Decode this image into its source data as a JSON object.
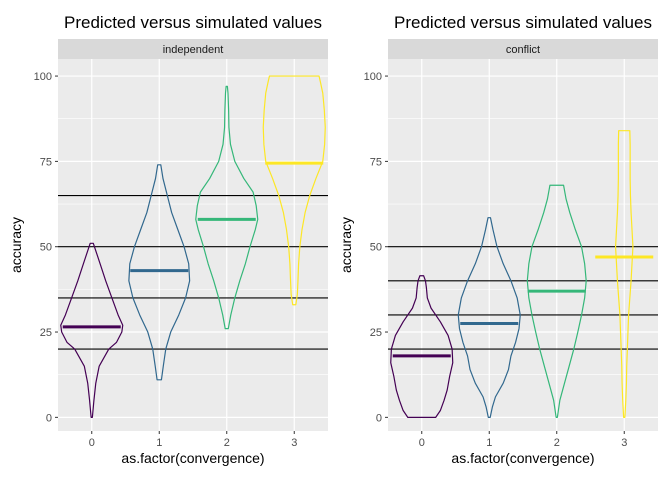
{
  "chart_data": [
    {
      "type": "violin",
      "title": "Predicted versus simulated values",
      "facet_label": "independent",
      "xlabel": "as.factor(convergence)",
      "ylabel": "accuracy",
      "categories": [
        "0",
        "1",
        "2",
        "3"
      ],
      "ylim": [
        -4,
        105
      ],
      "yticks": [
        0,
        25,
        50,
        75,
        100
      ],
      "hlines": [
        20,
        35,
        50,
        65
      ],
      "series": [
        {
          "category": "0",
          "color": "#440154",
          "predicted": 26.5,
          "range": [
            0,
            51
          ],
          "violin": [
            [
              0,
              0.02
            ],
            [
              5,
              0.07
            ],
            [
              10,
              0.13
            ],
            [
              15,
              0.24
            ],
            [
              20,
              0.55
            ],
            [
              22,
              0.8
            ],
            [
              25,
              0.97
            ],
            [
              27,
              1.0
            ],
            [
              30,
              0.85
            ],
            [
              35,
              0.65
            ],
            [
              40,
              0.45
            ],
            [
              45,
              0.27
            ],
            [
              48,
              0.16
            ],
            [
              51,
              0.05
            ]
          ]
        },
        {
          "category": "1",
          "color": "#31688E",
          "predicted": 43,
          "range": [
            11,
            74
          ],
          "violin": [
            [
              11,
              0.07
            ],
            [
              15,
              0.13
            ],
            [
              20,
              0.21
            ],
            [
              25,
              0.37
            ],
            [
              30,
              0.63
            ],
            [
              35,
              0.85
            ],
            [
              40,
              0.98
            ],
            [
              45,
              0.95
            ],
            [
              50,
              0.8
            ],
            [
              55,
              0.6
            ],
            [
              60,
              0.4
            ],
            [
              65,
              0.26
            ],
            [
              70,
              0.12
            ],
            [
              74,
              0.05
            ]
          ]
        },
        {
          "category": "2",
          "color": "#35B779",
          "predicted": 58,
          "range": [
            26,
            97
          ],
          "violin": [
            [
              26,
              0.05
            ],
            [
              30,
              0.13
            ],
            [
              35,
              0.26
            ],
            [
              40,
              0.42
            ],
            [
              45,
              0.6
            ],
            [
              50,
              0.75
            ],
            [
              55,
              0.92
            ],
            [
              58,
              1.0
            ],
            [
              62,
              0.95
            ],
            [
              66,
              0.85
            ],
            [
              70,
              0.55
            ],
            [
              75,
              0.26
            ],
            [
              80,
              0.12
            ],
            [
              85,
              0.07
            ],
            [
              90,
              0.06
            ],
            [
              95,
              0.04
            ],
            [
              97,
              0.02
            ]
          ]
        },
        {
          "category": "3",
          "color": "#FDE725",
          "predicted": 74.5,
          "range": [
            33,
            100
          ],
          "violin": [
            [
              33,
              0.05
            ],
            [
              36,
              0.1
            ],
            [
              40,
              0.12
            ],
            [
              45,
              0.14
            ],
            [
              50,
              0.18
            ],
            [
              55,
              0.25
            ],
            [
              60,
              0.35
            ],
            [
              65,
              0.5
            ],
            [
              70,
              0.7
            ],
            [
              75,
              0.92
            ],
            [
              80,
              0.98
            ],
            [
              85,
              1.0
            ],
            [
              90,
              0.97
            ],
            [
              95,
              0.92
            ],
            [
              98,
              0.85
            ],
            [
              100,
              0.8
            ]
          ]
        }
      ]
    },
    {
      "type": "violin",
      "title": "Predicted versus simulated values",
      "facet_label": "conflict",
      "xlabel": "as.factor(convergence)",
      "ylabel": "accuracy",
      "categories": [
        "0",
        "1",
        "2",
        "3"
      ],
      "ylim": [
        -4,
        105
      ],
      "yticks": [
        0,
        25,
        50,
        75,
        100
      ],
      "hlines": [
        20,
        30,
        40,
        50
      ],
      "series": [
        {
          "category": "0",
          "color": "#440154",
          "predicted": 18,
          "range": [
            0,
            41.5
          ],
          "violin": [
            [
              0,
              0.45
            ],
            [
              2,
              0.6
            ],
            [
              5,
              0.72
            ],
            [
              8,
              0.82
            ],
            [
              12,
              0.9
            ],
            [
              16,
              1.0
            ],
            [
              20,
              0.98
            ],
            [
              24,
              0.85
            ],
            [
              28,
              0.6
            ],
            [
              32,
              0.3
            ],
            [
              35,
              0.18
            ],
            [
              38,
              0.15
            ],
            [
              40,
              0.12
            ],
            [
              41.5,
              0.06
            ]
          ]
        },
        {
          "category": "1",
          "color": "#31688E",
          "predicted": 27.5,
          "range": [
            0,
            58.5
          ],
          "violin": [
            [
              0,
              0.03
            ],
            [
              3,
              0.1
            ],
            [
              6,
              0.2
            ],
            [
              10,
              0.45
            ],
            [
              14,
              0.62
            ],
            [
              18,
              0.7
            ],
            [
              22,
              0.85
            ],
            [
              26,
              0.96
            ],
            [
              30,
              1.0
            ],
            [
              35,
              0.9
            ],
            [
              40,
              0.7
            ],
            [
              45,
              0.45
            ],
            [
              50,
              0.25
            ],
            [
              55,
              0.12
            ],
            [
              58.5,
              0.04
            ]
          ]
        },
        {
          "category": "2",
          "color": "#35B779",
          "predicted": 37,
          "range": [
            0,
            68
          ],
          "violin": [
            [
              0,
              0.02
            ],
            [
              5,
              0.1
            ],
            [
              10,
              0.25
            ],
            [
              15,
              0.4
            ],
            [
              20,
              0.55
            ],
            [
              25,
              0.68
            ],
            [
              30,
              0.8
            ],
            [
              35,
              0.9
            ],
            [
              40,
              0.95
            ],
            [
              45,
              0.9
            ],
            [
              50,
              0.8
            ],
            [
              55,
              0.6
            ],
            [
              60,
              0.42
            ],
            [
              64,
              0.3
            ],
            [
              68,
              0.22
            ]
          ]
        },
        {
          "category": "3",
          "color": "#FDE725",
          "predicted": 47,
          "range": [
            0,
            84
          ],
          "violin": [
            [
              0,
              0.02
            ],
            [
              5,
              0.05
            ],
            [
              10,
              0.07
            ],
            [
              15,
              0.08
            ],
            [
              20,
              0.1
            ],
            [
              25,
              0.12
            ],
            [
              30,
              0.14
            ],
            [
              35,
              0.18
            ],
            [
              40,
              0.22
            ],
            [
              45,
              0.25
            ],
            [
              50,
              0.28
            ],
            [
              55,
              0.25
            ],
            [
              60,
              0.22
            ],
            [
              65,
              0.2
            ],
            [
              70,
              0.19
            ],
            [
              75,
              0.19
            ],
            [
              80,
              0.19
            ],
            [
              84,
              0.18
            ]
          ]
        }
      ]
    }
  ]
}
